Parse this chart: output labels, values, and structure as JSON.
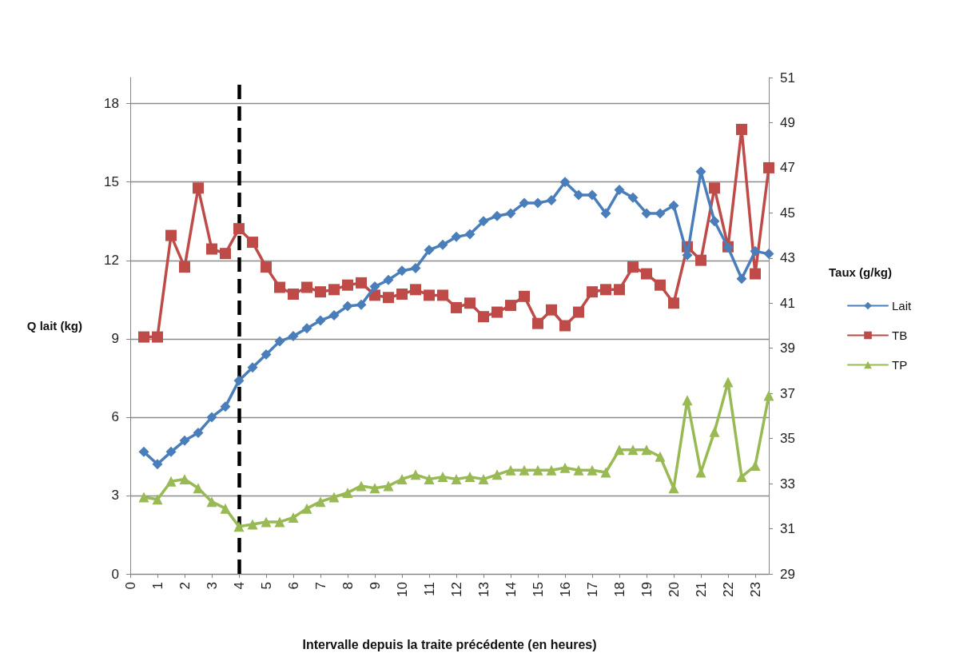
{
  "chart_data": {
    "type": "line",
    "xlabel": "Intervalle depuis la traite précédente (en heures)",
    "ylabel": "Q lait (kg)",
    "y2label": "Taux (g/kg)",
    "x": [
      0.5,
      1,
      1.5,
      2,
      2.5,
      3,
      3.5,
      4,
      4.5,
      5,
      5.5,
      6,
      6.5,
      7,
      7.5,
      8,
      8.5,
      9,
      9.5,
      10,
      10.5,
      11,
      11.5,
      12,
      12.5,
      13,
      13.5,
      14,
      14.5,
      15,
      15.5,
      16,
      16.5,
      17,
      17.5,
      18,
      18.5,
      19,
      19.5,
      20,
      20.5,
      21,
      21.5,
      22,
      22.5,
      23,
      23.5
    ],
    "xlim": [
      0,
      23.5
    ],
    "xticks": [
      0,
      1,
      2,
      3,
      4,
      5,
      6,
      7,
      8,
      9,
      10,
      11,
      12,
      13,
      14,
      15,
      16,
      17,
      18,
      19,
      20,
      21,
      22,
      23
    ],
    "ylim": [
      0,
      19
    ],
    "yticks": [
      0,
      3,
      6,
      9,
      12,
      15,
      18
    ],
    "y2lim": [
      29,
      51
    ],
    "y2ticks": [
      29,
      31,
      33,
      35,
      37,
      39,
      41,
      43,
      45,
      47,
      49,
      51
    ],
    "grid": "y",
    "legend": "right",
    "line_style": "solid",
    "series": [
      {
        "name": "Lait",
        "color": "#4a7ebb",
        "marker": "diamond",
        "values": [
          4.67,
          4.2,
          4.67,
          5.1,
          5.4,
          6.0,
          6.4,
          7.4,
          7.9,
          8.4,
          8.9,
          9.1,
          9.4,
          9.7,
          9.9,
          10.25,
          10.3,
          11.0,
          11.25,
          11.6,
          11.7,
          12.4,
          12.6,
          12.9,
          13.0,
          13.5,
          13.7,
          13.8,
          14.2,
          14.2,
          14.3,
          15.0,
          14.5,
          14.5,
          13.8,
          14.7,
          14.4,
          13.8,
          13.8,
          14.1,
          12.2,
          15.4,
          13.5,
          12.5,
          11.3,
          12.35,
          12.25
        ]
      },
      {
        "name": "TB",
        "color": "#be4b48",
        "marker": "square",
        "axis": "y2",
        "values": [
          39.5,
          39.5,
          44.0,
          42.6,
          46.1,
          43.4,
          43.2,
          44.3,
          43.7,
          42.6,
          41.7,
          41.4,
          41.7,
          41.5,
          41.6,
          41.8,
          41.9,
          41.35,
          41.25,
          41.4,
          41.6,
          41.35,
          41.35,
          40.8,
          41.0,
          40.4,
          40.6,
          40.9,
          41.3,
          40.1,
          40.7,
          40.0,
          40.6,
          41.5,
          41.6,
          41.6,
          42.6,
          42.3,
          41.8,
          41.0,
          43.5,
          42.9,
          46.1,
          43.5,
          48.7,
          42.3,
          47.0
        ]
      },
      {
        "name": "TP",
        "color": "#98b954",
        "marker": "triangle",
        "axis": "y2",
        "values": [
          32.4,
          32.3,
          33.1,
          33.2,
          32.8,
          32.2,
          31.9,
          31.1,
          31.2,
          31.3,
          31.3,
          31.5,
          31.9,
          32.2,
          32.4,
          32.6,
          32.9,
          32.8,
          32.9,
          33.2,
          33.4,
          33.2,
          33.3,
          33.2,
          33.3,
          33.2,
          33.4,
          33.6,
          33.6,
          33.6,
          33.6,
          33.7,
          33.6,
          33.6,
          33.5,
          34.5,
          34.5,
          34.5,
          34.2,
          32.8,
          36.7,
          33.5,
          35.3,
          37.5,
          33.3,
          33.8,
          36.9
        ]
      }
    ],
    "ref_lines": [
      {
        "axis": "x",
        "value": 4,
        "color": "#000000",
        "line_style": "dashed"
      }
    ]
  }
}
